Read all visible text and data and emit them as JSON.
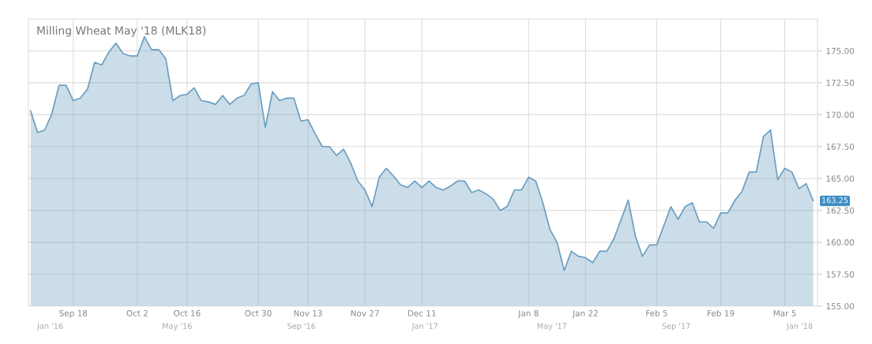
{
  "chart_data": {
    "type": "area",
    "title": "Milling Wheat May '18 (MLK18)",
    "categories": [
      null,
      null,
      null,
      null,
      null,
      null,
      "Sep 18",
      null,
      null,
      null,
      null,
      null,
      null,
      null,
      null,
      "Oct 2",
      null,
      null,
      null,
      null,
      null,
      null,
      "Oct 16",
      null,
      null,
      null,
      null,
      null,
      null,
      null,
      null,
      null,
      "Oct 30",
      null,
      null,
      null,
      null,
      null,
      null,
      "Nov 13",
      null,
      null,
      null,
      null,
      null,
      null,
      null,
      "Nov 27",
      null,
      null,
      null,
      null,
      null,
      null,
      null,
      "Dec 11",
      null,
      null,
      null,
      null,
      null,
      null,
      null,
      null,
      null,
      null,
      null,
      null,
      null,
      null,
      "Jan 8",
      null,
      null,
      null,
      null,
      null,
      null,
      null,
      "Jan 22",
      null,
      null,
      null,
      null,
      null,
      null,
      null,
      null,
      null,
      "Feb 5",
      null,
      null,
      null,
      null,
      null,
      null,
      null,
      null,
      "Feb 19",
      null,
      null,
      null,
      null,
      null,
      null,
      null,
      null,
      "Mar 5",
      null,
      null,
      null,
      null
    ],
    "series": [
      {
        "color": "#6a9ec0",
        "values": [
          170.3,
          168.6,
          168.8,
          170.1,
          172.3,
          172.3,
          171.1,
          171.3,
          172.0,
          174.1,
          173.9,
          174.9,
          175.6,
          174.8,
          174.6,
          174.6,
          176.1,
          175.1,
          175.1,
          174.4,
          171.1,
          171.5,
          171.6,
          172.1,
          171.1,
          171.0,
          170.8,
          171.5,
          170.8,
          171.3,
          171.5,
          172.4,
          172.5,
          169.0,
          171.8,
          171.1,
          171.3,
          171.3,
          169.5,
          169.6,
          168.5,
          167.5,
          167.5,
          166.8,
          167.3,
          166.2,
          164.8,
          164.1,
          162.8,
          165.1,
          165.8,
          165.2,
          164.5,
          164.3,
          164.8,
          164.3,
          164.8,
          164.3,
          164.1,
          164.4,
          164.8,
          164.8,
          163.9,
          164.1,
          163.8,
          163.4,
          162.5,
          162.8,
          164.1,
          164.1,
          165.1,
          164.8,
          163.1,
          161.0,
          160.0,
          157.8,
          159.3,
          158.9,
          158.8,
          158.4,
          159.3,
          159.3,
          160.3,
          161.8,
          163.3,
          160.5,
          158.9,
          159.8,
          159.8,
          161.3,
          162.8,
          161.8,
          162.8,
          163.1,
          161.6,
          161.6,
          161.1,
          162.3,
          162.3,
          163.3,
          164.0,
          165.5,
          165.5,
          168.3,
          168.8,
          164.9,
          165.8,
          165.5,
          164.2,
          164.6,
          163.25
        ]
      }
    ],
    "ylim": [
      155,
      177.5
    ],
    "yticks": [
      {
        "value": 155,
        "label": "155.00"
      },
      {
        "value": 157.5,
        "label": "157.50"
      },
      {
        "value": 160,
        "label": "160.00"
      },
      {
        "value": 162.5,
        "label": "162.50"
      },
      {
        "value": 165,
        "label": "165.00"
      },
      {
        "value": 167.5,
        "label": "167.50"
      },
      {
        "value": 170,
        "label": "170.00"
      },
      {
        "value": 172.5,
        "label": "172.50"
      },
      {
        "value": 175,
        "label": "175.00"
      }
    ],
    "grid": true,
    "annotations": [
      "163.25",
      "Jan '16",
      "May '16",
      "Sep '16",
      "Jan '17",
      "May '17",
      "Sep '17",
      "Jan '18"
    ]
  }
}
